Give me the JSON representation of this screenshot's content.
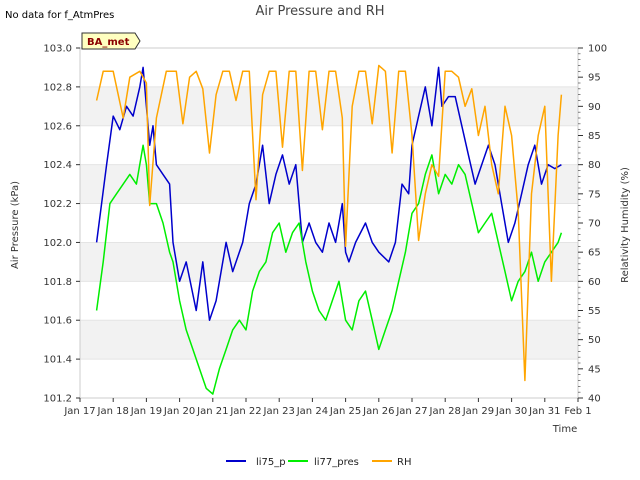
{
  "header": {
    "no_data_note": "No data for f_AtmPres",
    "badge": "BA_met"
  },
  "chart_data": {
    "type": "line",
    "title": "Air Pressure and RH",
    "xlabel": "Time",
    "ylabel": "Air Pressure (kPa)",
    "y2label": "Relativity Humidity (%)",
    "x_ticks": [
      "Jan 17",
      "Jan 18",
      "Jan 19",
      "Jan 20",
      "Jan 21",
      "Jan 22",
      "Jan 23",
      "Jan 24",
      "Jan 25",
      "Jan 26",
      "Jan 27",
      "Jan 28",
      "Jan 29",
      "Jan 30",
      "Jan 31",
      "Feb 1"
    ],
    "xlim": [
      0,
      15
    ],
    "ylim": [
      101.2,
      103.0
    ],
    "y_ticks": [
      "101.2",
      "101.4",
      "101.6",
      "101.8",
      "102.0",
      "102.2",
      "102.4",
      "102.6",
      "102.8",
      "103.0"
    ],
    "y2lim": [
      40,
      100
    ],
    "y2_ticks": [
      "40",
      "45",
      "50",
      "55",
      "60",
      "65",
      "70",
      "75",
      "80",
      "85",
      "90",
      "95",
      "100"
    ],
    "legend_position": "bottom-center",
    "series": [
      {
        "name": "li75_p",
        "color": "#0000cc",
        "axis": "left",
        "x": [
          0.5,
          0.8,
          1.0,
          1.2,
          1.4,
          1.6,
          1.8,
          1.9,
          2.0,
          2.1,
          2.2,
          2.3,
          2.5,
          2.7,
          2.8,
          3.0,
          3.2,
          3.5,
          3.7,
          3.9,
          4.1,
          4.4,
          4.6,
          4.9,
          5.1,
          5.3,
          5.5,
          5.7,
          5.9,
          6.1,
          6.3,
          6.5,
          6.7,
          6.9,
          7.0,
          7.1,
          7.3,
          7.5,
          7.7,
          7.9,
          8.0,
          8.1,
          8.3,
          8.6,
          8.8,
          9.0,
          9.3,
          9.5,
          9.7,
          9.9,
          10.0,
          10.2,
          10.4,
          10.6,
          10.8,
          10.9,
          11.1,
          11.3,
          11.5,
          11.7,
          11.9,
          12.1,
          12.3,
          12.5,
          12.7,
          12.9,
          13.1,
          13.3,
          13.5,
          13.7,
          13.9,
          14.1,
          14.3,
          14.5
        ],
        "values": [
          102.0,
          102.4,
          102.65,
          102.58,
          102.7,
          102.65,
          102.8,
          102.9,
          102.7,
          102.5,
          102.6,
          102.4,
          102.35,
          102.3,
          102.0,
          101.8,
          101.9,
          101.65,
          101.9,
          101.6,
          101.7,
          102.0,
          101.85,
          102.0,
          102.2,
          102.3,
          102.5,
          102.2,
          102.35,
          102.45,
          102.3,
          102.4,
          102.0,
          102.1,
          102.05,
          102.0,
          101.95,
          102.1,
          102.0,
          102.2,
          101.95,
          101.9,
          102.0,
          102.1,
          102.0,
          101.95,
          101.9,
          102.0,
          102.3,
          102.25,
          102.5,
          102.65,
          102.8,
          102.6,
          102.9,
          102.7,
          102.75,
          102.75,
          102.6,
          102.45,
          102.3,
          102.4,
          102.5,
          102.4,
          102.2,
          102.0,
          102.1,
          102.25,
          102.4,
          102.5,
          102.3,
          102.4,
          102.38,
          102.4
        ]
      },
      {
        "name": "li77_pres",
        "color": "#00ee00",
        "axis": "left",
        "x": [
          0.5,
          0.7,
          0.9,
          1.1,
          1.3,
          1.5,
          1.7,
          1.9,
          2.0,
          2.1,
          2.3,
          2.5,
          2.7,
          2.8,
          3.0,
          3.2,
          3.4,
          3.6,
          3.8,
          4.0,
          4.2,
          4.4,
          4.6,
          4.8,
          5.0,
          5.2,
          5.4,
          5.6,
          5.8,
          6.0,
          6.2,
          6.4,
          6.6,
          6.8,
          7.0,
          7.2,
          7.4,
          7.6,
          7.8,
          8.0,
          8.2,
          8.4,
          8.6,
          8.8,
          9.0,
          9.2,
          9.4,
          9.6,
          9.8,
          10.0,
          10.2,
          10.4,
          10.6,
          10.8,
          11.0,
          11.2,
          11.4,
          11.6,
          11.8,
          12.0,
          12.2,
          12.4,
          12.6,
          12.8,
          13.0,
          13.2,
          13.4,
          13.6,
          13.8,
          14.0,
          14.2,
          14.4,
          14.5
        ],
        "values": [
          101.65,
          101.9,
          102.2,
          102.25,
          102.3,
          102.35,
          102.3,
          102.5,
          102.4,
          102.2,
          102.2,
          102.1,
          101.95,
          101.9,
          101.7,
          101.55,
          101.45,
          101.35,
          101.25,
          101.22,
          101.35,
          101.45,
          101.55,
          101.6,
          101.55,
          101.75,
          101.85,
          101.9,
          102.05,
          102.1,
          101.95,
          102.05,
          102.1,
          101.9,
          101.75,
          101.65,
          101.6,
          101.7,
          101.8,
          101.6,
          101.55,
          101.7,
          101.75,
          101.6,
          101.45,
          101.55,
          101.65,
          101.8,
          101.95,
          102.15,
          102.2,
          102.35,
          102.45,
          102.25,
          102.35,
          102.3,
          102.4,
          102.35,
          102.2,
          102.05,
          102.1,
          102.15,
          102.0,
          101.85,
          101.7,
          101.8,
          101.85,
          101.95,
          101.8,
          101.9,
          101.95,
          102.0,
          102.05
        ]
      },
      {
        "name": "RH",
        "color": "#ffa500",
        "axis": "right",
        "x": [
          0.5,
          0.7,
          1.0,
          1.3,
          1.5,
          1.8,
          2.0,
          2.1,
          2.3,
          2.6,
          2.9,
          3.1,
          3.3,
          3.5,
          3.7,
          3.9,
          4.1,
          4.3,
          4.5,
          4.7,
          4.9,
          5.1,
          5.3,
          5.5,
          5.7,
          5.9,
          6.1,
          6.3,
          6.5,
          6.7,
          6.9,
          7.1,
          7.3,
          7.5,
          7.7,
          7.9,
          8.0,
          8.2,
          8.4,
          8.6,
          8.8,
          9.0,
          9.2,
          9.4,
          9.6,
          9.8,
          10.0,
          10.2,
          10.4,
          10.6,
          10.8,
          11.0,
          11.2,
          11.4,
          11.6,
          11.8,
          12.0,
          12.2,
          12.4,
          12.6,
          12.8,
          13.0,
          13.2,
          13.4,
          13.6,
          13.8,
          14.0,
          14.2,
          14.4,
          14.5
        ],
        "values": [
          91,
          96,
          96,
          88,
          95,
          96,
          94,
          73,
          88,
          96,
          96,
          87,
          95,
          96,
          93,
          82,
          92,
          96,
          96,
          91,
          96,
          96,
          74,
          92,
          96,
          96,
          83,
          96,
          96,
          79,
          96,
          96,
          86,
          96,
          96,
          88,
          66,
          90,
          96,
          96,
          87,
          97,
          96,
          82,
          96,
          96,
          85,
          67,
          75,
          80,
          78,
          96,
          96,
          95,
          90,
          93,
          85,
          90,
          80,
          75,
          90,
          85,
          72,
          43,
          75,
          85,
          90,
          60,
          85,
          92
        ]
      }
    ]
  },
  "legend": {
    "items": [
      "li75_p",
      "li77_pres",
      "RH"
    ]
  }
}
